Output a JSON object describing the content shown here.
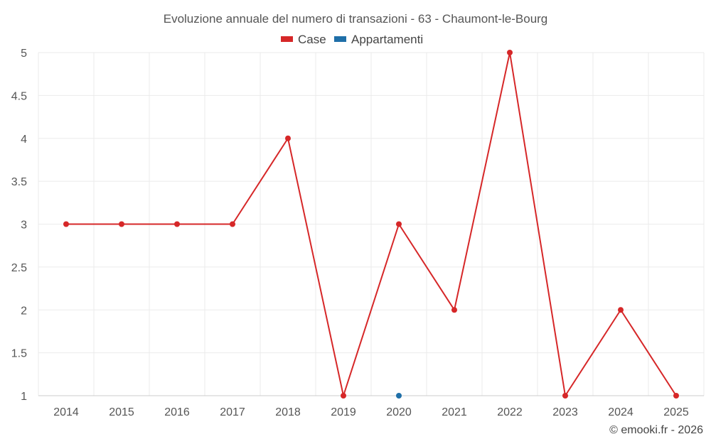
{
  "chart_data": {
    "type": "line",
    "title": "Evoluzione annuale del numero di transazioni - 63 - Chaumont-le-Bourg",
    "categories": [
      "2014",
      "2015",
      "2016",
      "2017",
      "2018",
      "2019",
      "2020",
      "2021",
      "2022",
      "2023",
      "2024",
      "2025"
    ],
    "series": [
      {
        "name": "Case",
        "color": "#d62728",
        "values": [
          3,
          3,
          3,
          3,
          4,
          1,
          3,
          2,
          5,
          1,
          2,
          1
        ]
      },
      {
        "name": "Appartamenti",
        "color": "#1f6fa8",
        "values": [
          null,
          null,
          null,
          null,
          null,
          null,
          1,
          null,
          null,
          null,
          null,
          null
        ]
      }
    ],
    "yticks": [
      "1",
      "1.5",
      "2",
      "2.5",
      "3",
      "3.5",
      "4",
      "4.5",
      "5"
    ],
    "ylim": [
      1,
      5
    ],
    "xlabel": "",
    "ylabel": "",
    "grid": true,
    "legend_position": "top-center"
  },
  "credit": "© emooki.fr - 2026"
}
